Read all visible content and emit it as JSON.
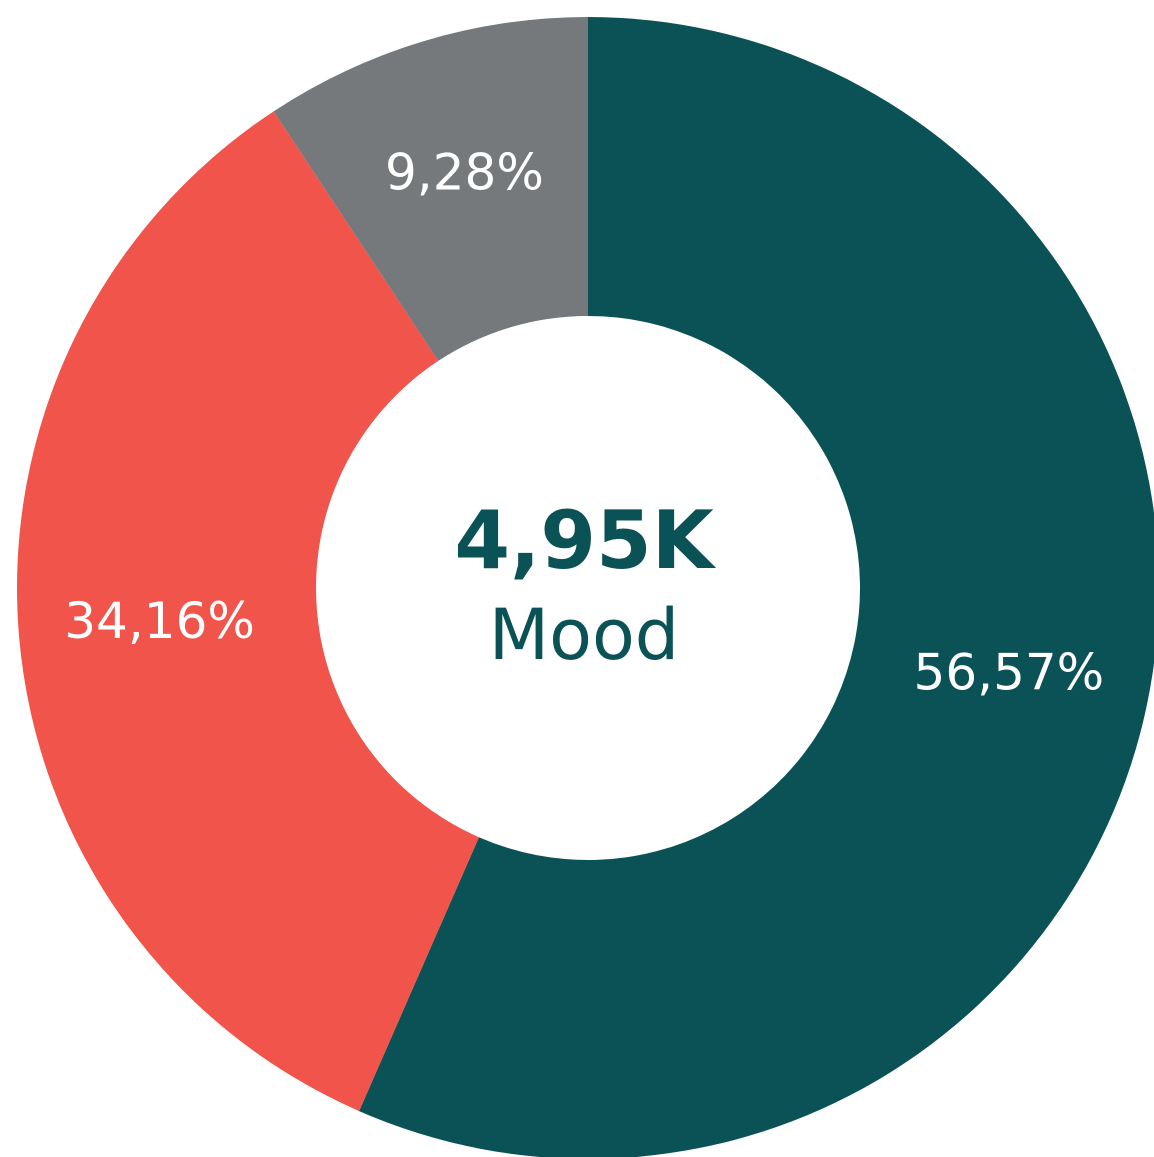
{
  "chart_data": {
    "type": "donut",
    "values": [
      56.57,
      34.16,
      9.28
    ],
    "value_labels": [
      "56,57%",
      "34,16%",
      "9,28%"
    ],
    "colors": [
      "#0b5257",
      "#f0544b",
      "#76797b"
    ],
    "center_value": "4,95K",
    "center_label": "Mood"
  }
}
